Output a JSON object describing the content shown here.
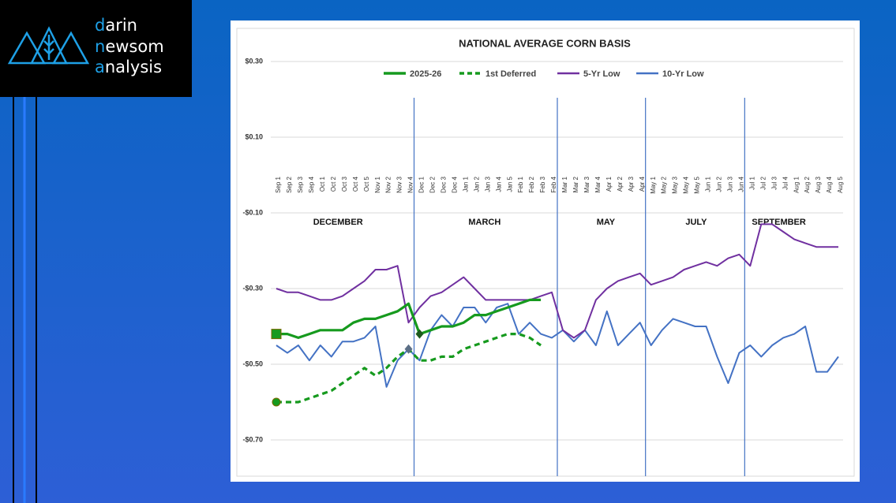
{
  "logo": {
    "lines": [
      "darin",
      "newsom",
      "analysis"
    ]
  },
  "chart_data": {
    "type": "line",
    "title": "NATIONAL AVERAGE CORN BASIS",
    "categories": [
      "Sep 1",
      "Sep 2",
      "Sep 3",
      "Sep 4",
      "Oct 1",
      "Oct 2",
      "Oct 3",
      "Oct 4",
      "Oct 5",
      "Nov 1",
      "Nov 2",
      "Nov 3",
      "Nov 4",
      "Dec 1",
      "Dec 2",
      "Dec 3",
      "Dec 4",
      "Jan 1",
      "Jan 2",
      "Jan 3",
      "Jan 4",
      "Jan 5",
      "Feb 1",
      "Feb 2",
      "Feb 3",
      "Feb 4",
      "Mar 1",
      "Mar 2",
      "Mar 3",
      "Mar 4",
      "Apr 1",
      "Apr 2",
      "Apr 3",
      "Apr 4",
      "May 1",
      "May 2",
      "May 3",
      "May 4",
      "May 5",
      "Jun 1",
      "Jun 2",
      "Jun 3",
      "Jun 4",
      "Jul 1",
      "Jul 2",
      "Jul 3",
      "Jul 4",
      "Aug 1",
      "Aug 2",
      "Aug 3",
      "Aug 4",
      "Aug 5"
    ],
    "periods": [
      "DECEMBER",
      "MARCH",
      "MAY",
      "JULY",
      "SEPTEMBER"
    ],
    "series": [
      {
        "name": "2025-26",
        "color": "#169a1e",
        "dash": false,
        "values": [
          -0.42,
          -0.42,
          -0.43,
          -0.42,
          -0.41,
          -0.41,
          -0.41,
          -0.39,
          -0.38,
          -0.38,
          -0.37,
          -0.36,
          -0.34,
          -0.42,
          -0.41,
          -0.4,
          -0.4,
          -0.39,
          -0.37,
          -0.37,
          -0.36,
          -0.35,
          -0.34,
          -0.33,
          -0.33,
          null,
          null,
          null,
          null,
          null,
          null,
          null,
          null,
          null,
          null,
          null,
          null,
          null,
          null,
          null,
          null,
          null,
          null,
          null,
          null,
          null,
          null,
          null,
          null,
          null,
          null,
          null
        ]
      },
      {
        "name": "1st Deferred",
        "color": "#169a1e",
        "dash": true,
        "values": [
          -0.6,
          -0.6,
          -0.6,
          -0.59,
          -0.58,
          -0.57,
          -0.55,
          -0.53,
          -0.51,
          -0.53,
          -0.51,
          -0.48,
          -0.46,
          -0.49,
          -0.49,
          -0.48,
          -0.48,
          -0.46,
          -0.45,
          -0.44,
          -0.43,
          -0.42,
          -0.42,
          -0.43,
          -0.45,
          null,
          null,
          null,
          null,
          null,
          null,
          null,
          null,
          null,
          null,
          null,
          null,
          null,
          null,
          null,
          null,
          null,
          null,
          null,
          null,
          null,
          null,
          null,
          null,
          null,
          null,
          null
        ]
      },
      {
        "name": "5-Yr Low",
        "color": "#7030a0",
        "dash": false,
        "values": [
          -0.3,
          -0.31,
          -0.31,
          -0.32,
          -0.33,
          -0.33,
          -0.32,
          -0.3,
          -0.28,
          -0.25,
          -0.25,
          -0.24,
          -0.39,
          -0.35,
          -0.32,
          -0.31,
          -0.29,
          -0.27,
          -0.3,
          -0.33,
          -0.33,
          -0.33,
          -0.33,
          -0.33,
          -0.32,
          -0.31,
          -0.41,
          -0.43,
          -0.41,
          -0.33,
          -0.3,
          -0.28,
          -0.27,
          -0.26,
          -0.29,
          -0.28,
          -0.27,
          -0.25,
          -0.24,
          -0.23,
          -0.24,
          -0.22,
          -0.21,
          -0.24,
          -0.13,
          -0.13,
          -0.15,
          -0.17,
          -0.18,
          -0.19,
          -0.19,
          -0.19
        ]
      },
      {
        "name": "10-Yr Low",
        "color": "#4472c4",
        "dash": false,
        "values": [
          -0.45,
          -0.47,
          -0.45,
          -0.49,
          -0.45,
          -0.48,
          -0.44,
          -0.44,
          -0.43,
          -0.4,
          -0.56,
          -0.49,
          -0.46,
          -0.49,
          -0.41,
          -0.37,
          -0.4,
          -0.35,
          -0.35,
          -0.39,
          -0.35,
          -0.34,
          -0.42,
          -0.39,
          -0.42,
          -0.43,
          -0.41,
          -0.44,
          -0.41,
          -0.45,
          -0.36,
          -0.45,
          -0.42,
          -0.39,
          -0.45,
          -0.41,
          -0.38,
          -0.39,
          -0.4,
          -0.4,
          -0.48,
          -0.55,
          -0.47,
          -0.45,
          -0.48,
          -0.45,
          -0.43,
          -0.42,
          -0.4,
          -0.52,
          -0.52,
          -0.48
        ]
      }
    ],
    "ylim": [
      -0.8,
      0.3
    ],
    "yticks": [
      {
        "value": 0.3,
        "label": "$0.30"
      },
      {
        "value": 0.1,
        "label": "$0.10"
      },
      {
        "value": -0.1,
        "label": "-$0.10"
      },
      {
        "value": -0.3,
        "label": "-$0.30"
      },
      {
        "value": -0.5,
        "label": "-$0.50"
      },
      {
        "value": -0.7,
        "label": "-$0.70"
      }
    ],
    "grid": true,
    "legend": "top"
  }
}
